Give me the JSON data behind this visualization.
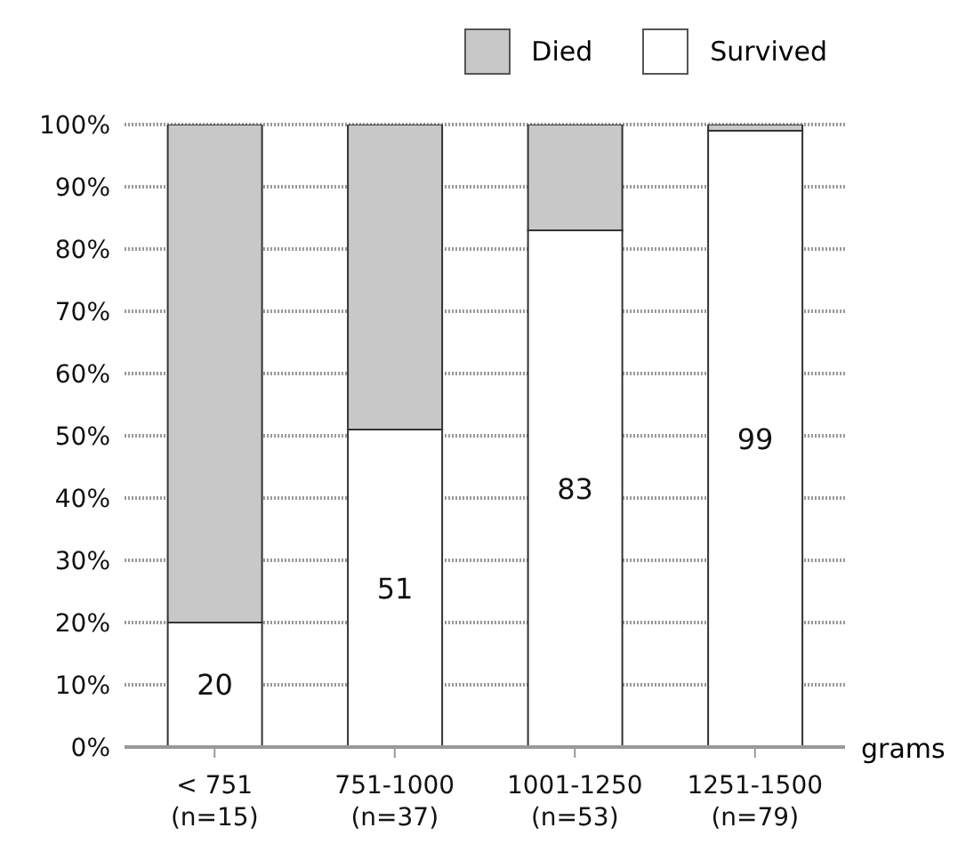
{
  "chart_data": {
    "type": "bar",
    "stacked": true,
    "categories": [
      "< 751\n(n=15)",
      "751-1000\n(n=37)",
      "1001-1250\n(n=53)",
      "1251-1500\n(n=79)"
    ],
    "xlabel": "grams",
    "series": [
      {
        "name": "Survived",
        "color": "#ffffff",
        "values": [
          20,
          51,
          83,
          99
        ],
        "value_labels": [
          "20",
          "51",
          "83",
          "99"
        ]
      },
      {
        "name": "Died",
        "color": "#c8c8c8",
        "values": [
          80,
          49,
          17,
          1
        ]
      }
    ],
    "ylim": [
      0,
      100
    ],
    "yticks": [
      {
        "value": 0,
        "label": "0%"
      },
      {
        "value": 10,
        "label": "10%"
      },
      {
        "value": 20,
        "label": "20%"
      },
      {
        "value": 30,
        "label": "30%"
      },
      {
        "value": 40,
        "label": "40%"
      },
      {
        "value": 50,
        "label": "50%"
      },
      {
        "value": 60,
        "label": "60%"
      },
      {
        "value": 70,
        "label": "70%"
      },
      {
        "value": 80,
        "label": "80%"
      },
      {
        "value": 90,
        "label": "90%"
      },
      {
        "value": 100,
        "label": "100%"
      }
    ],
    "grid": "y",
    "legend": "top right"
  }
}
